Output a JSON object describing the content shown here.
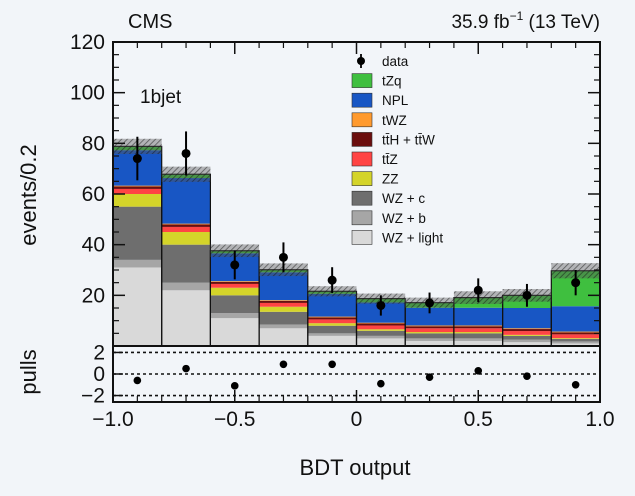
{
  "header": {
    "experiment": "CMS",
    "luminosity_prefix": "35.9 fb",
    "luminosity_exp": "−1",
    "luminosity_suffix": " (13 TeV)"
  },
  "chart_data": {
    "type": "bar",
    "stacked": true,
    "region_label": "1bjet",
    "xlabel": "BDT output",
    "ylabel": "events/0.2",
    "pulls_label": "pulls",
    "xlim": [
      -1.0,
      1.0
    ],
    "ylim": [
      0,
      120
    ],
    "pulls_ylim": [
      -2.6,
      2.6
    ],
    "x_ticks": [
      -1.0,
      -0.5,
      0.0,
      0.5,
      1.0
    ],
    "x_tick_labels": [
      "−1.0",
      "−0.5",
      "0",
      "0.5",
      "1.0"
    ],
    "y_ticks": [
      20,
      40,
      60,
      80,
      100,
      120
    ],
    "y_tick_labels": [
      "20",
      "40",
      "60",
      "80",
      "100",
      "120"
    ],
    "pulls_ticks": [
      2,
      0,
      -2
    ],
    "pulls_tick_labels": [
      "2",
      "0",
      "−2"
    ],
    "bin_edges": [
      -1.0,
      -0.8,
      -0.6,
      -0.4,
      -0.2,
      0.0,
      0.2,
      0.4,
      0.6,
      0.8,
      1.0
    ],
    "series": [
      {
        "name": "WZ + light",
        "color": "#d9d9d9",
        "values": [
          31,
          22,
          11,
          7,
          4,
          3,
          2,
          2,
          1.5,
          1
        ]
      },
      {
        "name": "WZ + b",
        "color": "#a6a6a6",
        "values": [
          3,
          3,
          2,
          1.5,
          1,
          1,
          1,
          1,
          1,
          0.8
        ]
      },
      {
        "name": "WZ + c",
        "color": "#6e6e6e",
        "values": [
          21,
          15,
          7,
          5,
          3,
          2,
          2,
          2,
          1.5,
          1
        ]
      },
      {
        "name": "ZZ",
        "color": "#d4d42a",
        "values": [
          5,
          5,
          3,
          2,
          1,
          0.6,
          0.5,
          0.5,
          0.4,
          0.3
        ]
      },
      {
        "name": "tt̄Z",
        "color": "#ff4444",
        "values": [
          2,
          2,
          1.5,
          1.5,
          1.5,
          1.5,
          1.5,
          1.5,
          1.5,
          1.5
        ]
      },
      {
        "name": "tt̄H + tt̄W",
        "color": "#6b0e0e",
        "values": [
          1,
          1,
          0.8,
          0.8,
          0.8,
          0.8,
          0.8,
          0.8,
          0.8,
          0.8
        ]
      },
      {
        "name": "tWZ",
        "color": "#ff9a2e",
        "values": [
          0.3,
          0.3,
          0.3,
          0.3,
          0.3,
          0.3,
          0.3,
          0.3,
          0.3,
          0.3
        ]
      },
      {
        "name": "NPL",
        "color": "#1856c4",
        "values": [
          14,
          18,
          11,
          11,
          9,
          8,
          7,
          7,
          8,
          10
        ]
      },
      {
        "name": "tZq",
        "color": "#3fbf3f",
        "values": [
          1.5,
          1.5,
          1,
          1,
          1,
          1.5,
          2,
          4,
          5,
          14
        ]
      }
    ],
    "uncertainty_halfwidth": [
      3,
      3,
      2.5,
      2.5,
      2,
      2,
      2,
      2.5,
      2.5,
      3
    ],
    "data": {
      "name": "data",
      "x": [
        -0.9,
        -0.7,
        -0.5,
        -0.3,
        -0.1,
        0.1,
        0.3,
        0.5,
        0.7,
        0.9
      ],
      "y": [
        74,
        76,
        32,
        35,
        26,
        16,
        17,
        22,
        20,
        25
      ],
      "yerr": [
        8.6,
        8.7,
        5.7,
        5.9,
        5.1,
        4.0,
        4.1,
        4.7,
        4.5,
        5.0
      ]
    },
    "pulls": {
      "x": [
        -0.9,
        -0.7,
        -0.5,
        -0.3,
        -0.1,
        0.1,
        0.3,
        0.5,
        0.7,
        0.9
      ],
      "y": [
        -0.6,
        0.5,
        -1.1,
        0.9,
        0.9,
        -0.9,
        -0.3,
        0.3,
        -0.2,
        -1.0
      ],
      "reference_lines": [
        2,
        0,
        -2
      ]
    },
    "legend_position": "upper-center",
    "legend_order": [
      "data",
      "tZq",
      "NPL",
      "tWZ",
      "tt̄H + tt̄W",
      "tt̄Z",
      "ZZ",
      "WZ + c",
      "WZ + b",
      "WZ + light"
    ]
  }
}
